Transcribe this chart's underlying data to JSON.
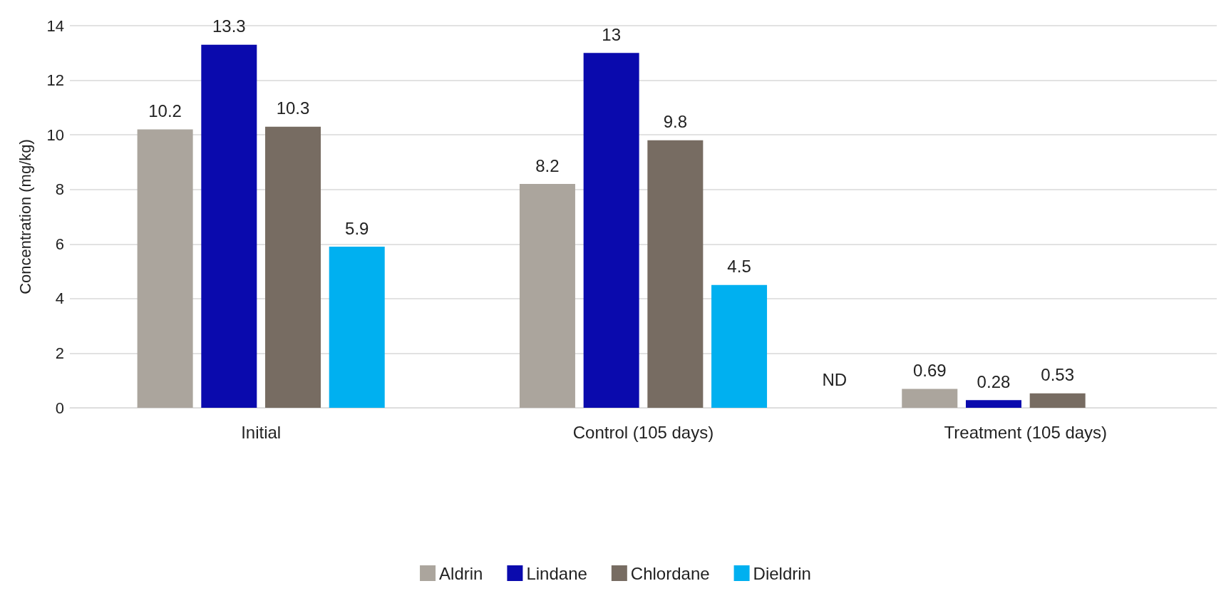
{
  "chart_data": {
    "type": "bar",
    "ylabel": "Concentration (mg/kg)",
    "categories": [
      "Initial",
      "Control (105 days)",
      "Treatment (105 days)"
    ],
    "series": [
      {
        "name": "Aldrin",
        "color": "#aba59d",
        "values": [
          10.2,
          8.2,
          0.69
        ]
      },
      {
        "name": "Lindane",
        "color": "#0a0aad",
        "values": [
          13.3,
          13,
          0.28
        ]
      },
      {
        "name": "Chlordane",
        "color": "#776c62",
        "values": [
          10.3,
          9.8,
          0.53
        ]
      },
      {
        "name": "Dieldrin",
        "color": "#00b0f0",
        "values": [
          5.9,
          4.5,
          null
        ]
      }
    ],
    "ylim": [
      0,
      14
    ],
    "yticks": [
      0,
      2,
      4,
      6,
      8,
      10,
      12,
      14
    ],
    "grid": "y",
    "legend": "bottom",
    "data_labels": true,
    "annotations": [
      "ND"
    ]
  }
}
